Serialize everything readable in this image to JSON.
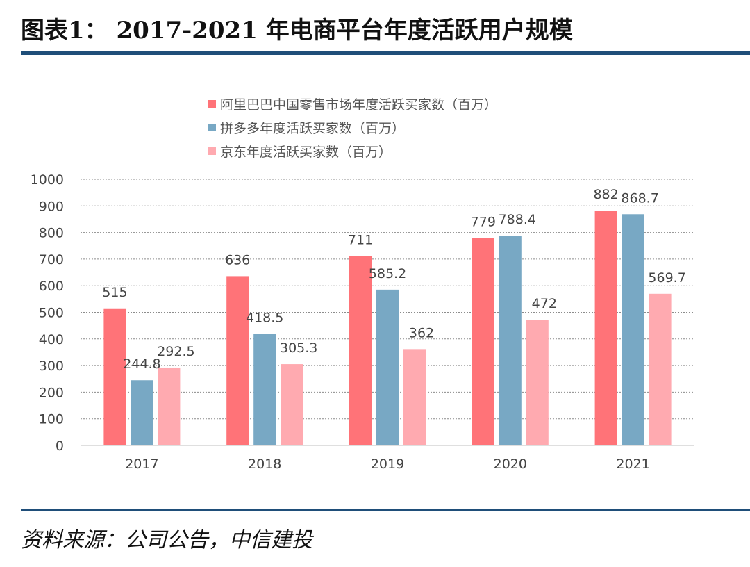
{
  "header": {
    "title": "图表1：  2017-2021 年电商平台年度活跃用户规模"
  },
  "footer": {
    "source": "资料来源：公司公告，中信建投"
  },
  "chart_data": {
    "type": "bar",
    "categories": [
      "2017",
      "2018",
      "2019",
      "2020",
      "2021"
    ],
    "series": [
      {
        "name": "阿里巴巴中国零售市场年度活跃买家数（百万）",
        "values": [
          515,
          636,
          711,
          779,
          882
        ],
        "labels": [
          "515",
          "636",
          "711",
          "779",
          "882"
        ],
        "color": "#ff7378"
      },
      {
        "name": "拼多多年度活跃买家数（百万）",
        "values": [
          244.8,
          418.5,
          585.2,
          788.4,
          868.7
        ],
        "labels": [
          "244.8",
          "418.5",
          "585.2",
          "788.4",
          "868.7"
        ],
        "color": "#78a8c4"
      },
      {
        "name": "京东年度活跃买家数（百万）",
        "values": [
          292.5,
          305.3,
          362,
          472,
          569.7
        ],
        "labels": [
          "292.5",
          "305.3",
          "362",
          "472",
          "569.7"
        ],
        "color": "#ffaab0"
      }
    ],
    "yticks": [
      "0",
      "100",
      "200",
      "300",
      "400",
      "500",
      "600",
      "700",
      "800",
      "900",
      "1000"
    ],
    "ylim": [
      0,
      1000
    ],
    "grid": true,
    "legend": "top-center"
  }
}
